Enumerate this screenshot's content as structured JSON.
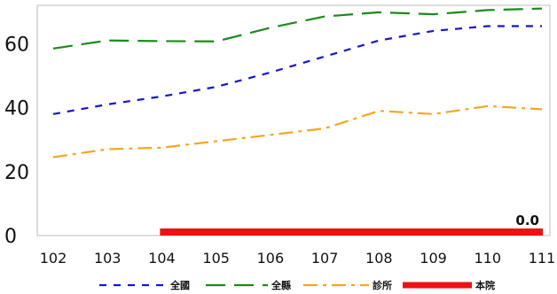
{
  "chart_data": {
    "type": "line",
    "title": "",
    "xlabel": "",
    "ylabel": "",
    "categories": [
      "102",
      "103",
      "104",
      "105",
      "106",
      "107",
      "108",
      "109",
      "110",
      "111"
    ],
    "yticks": [
      "0",
      "20",
      "40",
      "60"
    ],
    "ylim": [
      0,
      72
    ],
    "grid": false,
    "legend_position": "bottom",
    "series": [
      {
        "name": "全國",
        "color": "#1515d6",
        "style": "dashed",
        "values": [
          38.0,
          41.0,
          43.5,
          46.5,
          51.0,
          56.0,
          61.0,
          64.0,
          65.5,
          65.5
        ]
      },
      {
        "name": "全縣",
        "color": "#1a8a1a",
        "style": "long-dashed",
        "values": [
          58.5,
          61.0,
          60.8,
          60.7,
          65.0,
          68.5,
          69.8,
          69.2,
          70.5,
          71.0
        ]
      },
      {
        "name": "診所",
        "color": "#f5a623",
        "style": "dash-dot",
        "values": [
          24.5,
          27.0,
          27.5,
          29.5,
          31.5,
          33.5,
          39.0,
          38.0,
          40.5,
          39.5
        ]
      },
      {
        "name": "本院",
        "color": "#ee1111",
        "style": "solid-thick",
        "x_start_index": 2,
        "values": [
          null,
          null,
          0.0,
          0.0,
          0.0,
          0.0,
          0.0,
          0.0,
          0.0,
          0.0
        ]
      }
    ],
    "annotations": [
      {
        "text": "0.0",
        "series": "本院",
        "category": "111"
      }
    ]
  }
}
